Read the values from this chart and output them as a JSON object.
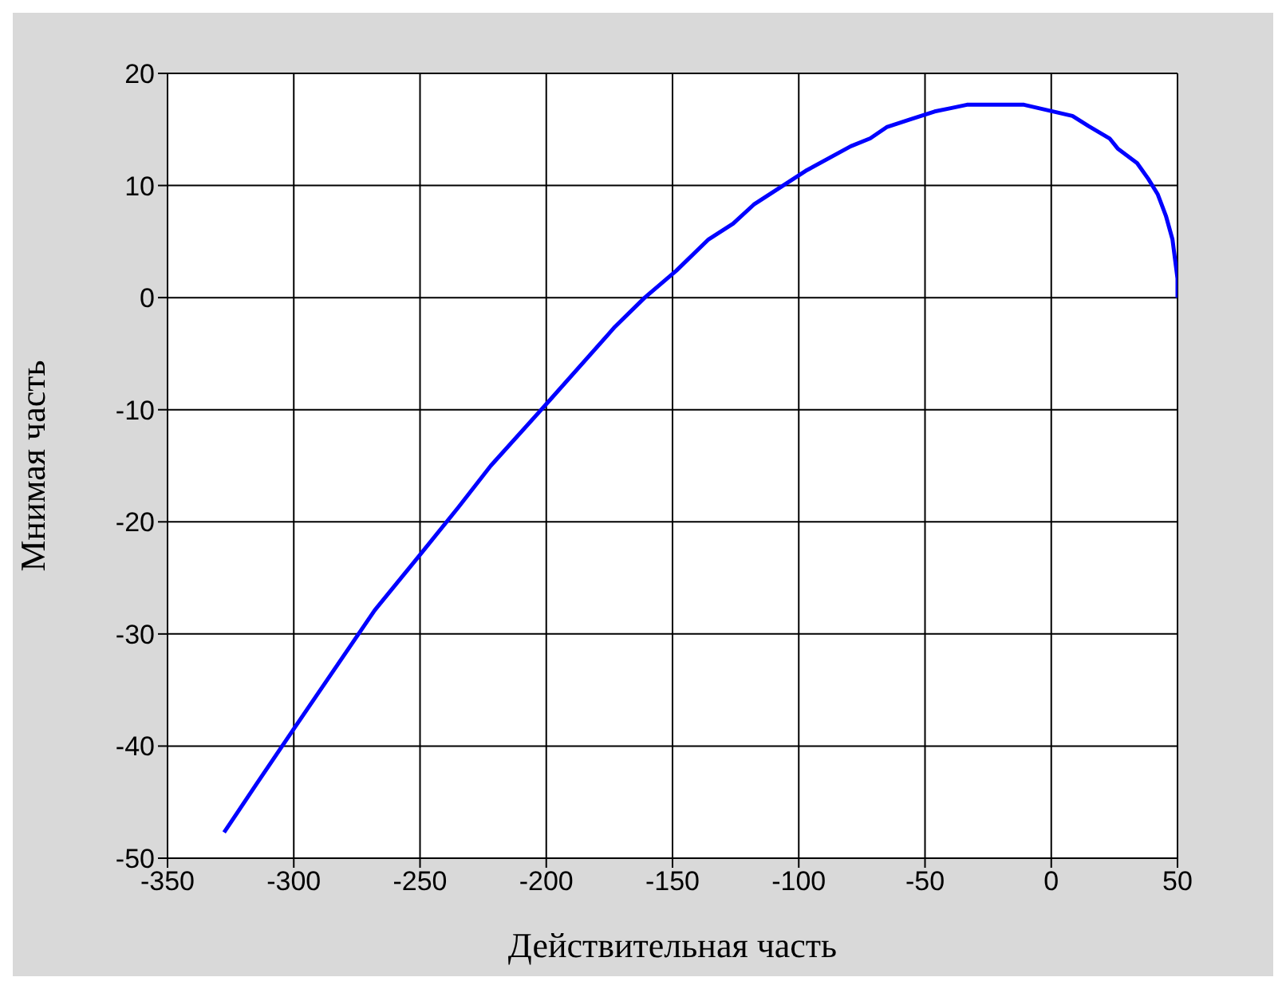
{
  "chart_data": {
    "type": "line",
    "xlabel": "Действительная часть",
    "ylabel": "Мнимая часть",
    "x": [
      -327.6,
      -314.8,
      -300.1,
      -268,
      -249.5,
      -234.8,
      -222,
      -199.6,
      -172.8,
      -161,
      -148.5,
      -135.7,
      -126,
      -117.8,
      -97.3,
      -79.4,
      -71.7,
      -65.2,
      -55.8,
      -46.2,
      -39.8,
      -33.4,
      -10.8,
      -1.2,
      8.4,
      14.8,
      23.1,
      26.3,
      34,
      38.4,
      42.2,
      45.4,
      48,
      50,
      50
    ],
    "series": [
      {
        "color": "#0000ff",
        "values": [
          -47.7,
          -43.4,
          -38.5,
          -27.9,
          -22.8,
          -18.7,
          -15,
          -9.4,
          -2.6,
          0,
          2.4,
          5.2,
          6.6,
          8.3,
          11.3,
          13.5,
          14.2,
          15.2,
          15.9,
          16.6,
          16.9,
          17.2,
          17.2,
          16.7,
          16.2,
          15.3,
          14.2,
          13.3,
          12,
          10.6,
          9.2,
          7.3,
          5.2,
          1.7,
          0
        ]
      }
    ],
    "xlim": [
      -350,
      50
    ],
    "xticks": [
      -350,
      -300,
      -250,
      -200,
      -150,
      -100,
      -50,
      0,
      50
    ],
    "ylim": [
      -50,
      20
    ],
    "yticks": [
      -50,
      -40,
      -30,
      -20,
      -10,
      0,
      10,
      20
    ],
    "grid": true,
    "marker": "none",
    "line_style": "solid"
  }
}
